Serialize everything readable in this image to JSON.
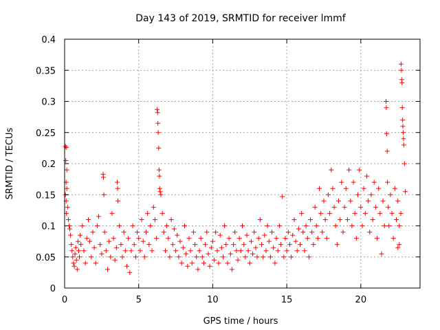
{
  "chart_data": {
    "type": "scatter",
    "title": "Day 143 of 2019, SRMTID for receiver lmmf",
    "xlabel": "GPS time / hours",
    "ylabel": "SRMTID / TECUs",
    "xlim": [
      0,
      24
    ],
    "ylim": [
      0,
      0.4
    ],
    "xticks": [
      0,
      5,
      10,
      15,
      20
    ],
    "yticks": [
      0,
      0.05,
      0.1,
      0.15,
      0.2,
      0.25,
      0.3,
      0.35,
      0.4
    ],
    "xtick_labels": [
      "0",
      "5",
      "10",
      "15",
      "20"
    ],
    "ytick_labels": [
      "0",
      "0.05",
      "0.1",
      "0.15",
      "0.2",
      "0.25",
      "0.3",
      "0.35",
      "0.4"
    ],
    "grid": true,
    "marker": "+",
    "color": "#ff0000",
    "series": [
      {
        "name": "lmmf",
        "points": [
          [
            0.05,
            0.228
          ],
          [
            0.1,
            0.226
          ],
          [
            0.08,
            0.205
          ],
          [
            0.15,
            0.19
          ],
          [
            0.1,
            0.17
          ],
          [
            0.15,
            0.16
          ],
          [
            0.05,
            0.15
          ],
          [
            0.1,
            0.14
          ],
          [
            0.2,
            0.13
          ],
          [
            0.12,
            0.12
          ],
          [
            0.25,
            0.11
          ],
          [
            0.3,
            0.1
          ],
          [
            0.35,
            0.095
          ],
          [
            0.4,
            0.085
          ],
          [
            0.45,
            0.07
          ],
          [
            0.5,
            0.06
          ],
          [
            0.55,
            0.05
          ],
          [
            0.6,
            0.04
          ],
          [
            0.65,
            0.035
          ],
          [
            0.7,
            0.055
          ],
          [
            0.75,
            0.065
          ],
          [
            0.8,
            0.045
          ],
          [
            0.85,
            0.03
          ],
          [
            0.9,
            0.075
          ],
          [
            0.95,
            0.06
          ],
          [
            1.0,
            0.05
          ],
          [
            1.05,
            0.085
          ],
          [
            1.1,
            0.07
          ],
          [
            1.2,
            0.1
          ],
          [
            1.3,
            0.06
          ],
          [
            1.4,
            0.04
          ],
          [
            1.5,
            0.08
          ],
          [
            1.6,
            0.11
          ],
          [
            1.7,
            0.075
          ],
          [
            1.8,
            0.05
          ],
          [
            1.9,
            0.09
          ],
          [
            2.0,
            0.065
          ],
          [
            2.1,
            0.04
          ],
          [
            2.2,
            0.1
          ],
          [
            2.3,
            0.115
          ],
          [
            2.4,
            0.07
          ],
          [
            2.5,
            0.055
          ],
          [
            2.6,
            0.183
          ],
          [
            2.62,
            0.178
          ],
          [
            2.65,
            0.15
          ],
          [
            2.7,
            0.09
          ],
          [
            2.8,
            0.06
          ],
          [
            2.9,
            0.03
          ],
          [
            3.0,
            0.075
          ],
          [
            3.1,
            0.05
          ],
          [
            3.2,
            0.12
          ],
          [
            3.3,
            0.08
          ],
          [
            3.4,
            0.045
          ],
          [
            3.5,
            0.065
          ],
          [
            3.55,
            0.17
          ],
          [
            3.58,
            0.16
          ],
          [
            3.6,
            0.14
          ],
          [
            3.7,
            0.1
          ],
          [
            3.8,
            0.07
          ],
          [
            3.9,
            0.05
          ],
          [
            4.0,
            0.09
          ],
          [
            4.1,
            0.06
          ],
          [
            4.2,
            0.035
          ],
          [
            4.3,
            0.08
          ],
          [
            4.4,
            0.025
          ],
          [
            4.5,
            0.06
          ],
          [
            4.6,
            0.1
          ],
          [
            4.7,
            0.07
          ],
          [
            4.8,
            0.05
          ],
          [
            4.9,
            0.09
          ],
          [
            5.0,
            0.08
          ],
          [
            5.1,
            0.06
          ],
          [
            5.2,
            0.11
          ],
          [
            5.3,
            0.075
          ],
          [
            5.4,
            0.05
          ],
          [
            5.5,
            0.09
          ],
          [
            5.6,
            0.12
          ],
          [
            5.7,
            0.07
          ],
          [
            5.8,
            0.1
          ],
          [
            5.9,
            0.06
          ],
          [
            6.0,
            0.13
          ],
          [
            6.1,
            0.11
          ],
          [
            6.2,
            0.08
          ],
          [
            6.25,
            0.287
          ],
          [
            6.28,
            0.282
          ],
          [
            6.3,
            0.265
          ],
          [
            6.32,
            0.25
          ],
          [
            6.35,
            0.225
          ],
          [
            6.38,
            0.19
          ],
          [
            6.4,
            0.18
          ],
          [
            6.42,
            0.16
          ],
          [
            6.45,
            0.155
          ],
          [
            6.5,
            0.15
          ],
          [
            6.6,
            0.12
          ],
          [
            6.7,
            0.09
          ],
          [
            6.8,
            0.06
          ],
          [
            6.9,
            0.1
          ],
          [
            7.0,
            0.08
          ],
          [
            7.1,
            0.05
          ],
          [
            7.2,
            0.11
          ],
          [
            7.3,
            0.07
          ],
          [
            7.4,
            0.095
          ],
          [
            7.5,
            0.06
          ],
          [
            7.6,
            0.085
          ],
          [
            7.7,
            0.05
          ],
          [
            7.8,
            0.075
          ],
          [
            7.9,
            0.04
          ],
          [
            8.0,
            0.065
          ],
          [
            8.1,
            0.1
          ],
          [
            8.2,
            0.055
          ],
          [
            8.3,
            0.035
          ],
          [
            8.4,
            0.08
          ],
          [
            8.5,
            0.06
          ],
          [
            8.6,
            0.04
          ],
          [
            8.7,
            0.09
          ],
          [
            8.8,
            0.07
          ],
          [
            8.9,
            0.05
          ],
          [
            9.0,
            0.03
          ],
          [
            9.1,
            0.06
          ],
          [
            9.2,
            0.08
          ],
          [
            9.3,
            0.05
          ],
          [
            9.4,
            0.04
          ],
          [
            9.5,
            0.07
          ],
          [
            9.6,
            0.09
          ],
          [
            9.7,
            0.055
          ],
          [
            9.8,
            0.035
          ],
          [
            9.9,
            0.065
          ],
          [
            10.0,
            0.075
          ],
          [
            10.1,
            0.045
          ],
          [
            10.2,
            0.09
          ],
          [
            10.3,
            0.06
          ],
          [
            10.4,
            0.04
          ],
          [
            10.5,
            0.085
          ],
          [
            10.6,
            0.065
          ],
          [
            10.7,
            0.05
          ],
          [
            10.8,
            0.1
          ],
          [
            10.9,
            0.07
          ],
          [
            11.0,
            0.04
          ],
          [
            11.1,
            0.08
          ],
          [
            11.2,
            0.055
          ],
          [
            11.3,
            0.03
          ],
          [
            11.4,
            0.07
          ],
          [
            11.5,
            0.09
          ],
          [
            11.6,
            0.06
          ],
          [
            11.7,
            0.045
          ],
          [
            11.8,
            0.08
          ],
          [
            11.9,
            0.06
          ],
          [
            12.0,
            0.1
          ],
          [
            12.1,
            0.07
          ],
          [
            12.2,
            0.05
          ],
          [
            12.3,
            0.085
          ],
          [
            12.4,
            0.06
          ],
          [
            12.5,
            0.04
          ],
          [
            12.6,
            0.075
          ],
          [
            12.7,
            0.055
          ],
          [
            12.8,
            0.09
          ],
          [
            12.9,
            0.065
          ],
          [
            13.0,
            0.05
          ],
          [
            13.1,
            0.08
          ],
          [
            13.2,
            0.11
          ],
          [
            13.3,
            0.07
          ],
          [
            13.4,
            0.05
          ],
          [
            13.5,
            0.085
          ],
          [
            13.6,
            0.06
          ],
          [
            13.7,
            0.1
          ],
          [
            13.8,
            0.075
          ],
          [
            13.9,
            0.05
          ],
          [
            14.0,
            0.09
          ],
          [
            14.1,
            0.065
          ],
          [
            14.2,
            0.04
          ],
          [
            14.3,
            0.08
          ],
          [
            14.4,
            0.06
          ],
          [
            14.5,
            0.1
          ],
          [
            14.6,
            0.07
          ],
          [
            14.7,
            0.147
          ],
          [
            14.8,
            0.05
          ],
          [
            14.9,
            0.08
          ],
          [
            15.0,
            0.06
          ],
          [
            15.1,
            0.09
          ],
          [
            15.2,
            0.07
          ],
          [
            15.3,
            0.05
          ],
          [
            15.4,
            0.085
          ],
          [
            15.5,
            0.11
          ],
          [
            15.6,
            0.075
          ],
          [
            15.7,
            0.06
          ],
          [
            15.8,
            0.095
          ],
          [
            15.9,
            0.07
          ],
          [
            16.0,
            0.12
          ],
          [
            16.1,
            0.09
          ],
          [
            16.2,
            0.06
          ],
          [
            16.3,
            0.1
          ],
          [
            16.4,
            0.08
          ],
          [
            16.5,
            0.05
          ],
          [
            16.6,
            0.11
          ],
          [
            16.7,
            0.09
          ],
          [
            16.8,
            0.07
          ],
          [
            16.9,
            0.13
          ],
          [
            17.0,
            0.1
          ],
          [
            17.1,
            0.08
          ],
          [
            17.2,
            0.16
          ],
          [
            17.3,
            0.12
          ],
          [
            17.4,
            0.09
          ],
          [
            17.5,
            0.14
          ],
          [
            17.6,
            0.11
          ],
          [
            17.7,
            0.08
          ],
          [
            17.8,
            0.15
          ],
          [
            17.9,
            0.12
          ],
          [
            18.0,
            0.19
          ],
          [
            18.1,
            0.16
          ],
          [
            18.2,
            0.13
          ],
          [
            18.3,
            0.1
          ],
          [
            18.4,
            0.07
          ],
          [
            18.5,
            0.14
          ],
          [
            18.6,
            0.11
          ],
          [
            18.7,
            0.17
          ],
          [
            18.8,
            0.09
          ],
          [
            18.9,
            0.13
          ],
          [
            19.0,
            0.16
          ],
          [
            19.1,
            0.11
          ],
          [
            19.2,
            0.19
          ],
          [
            19.3,
            0.14
          ],
          [
            19.4,
            0.1
          ],
          [
            19.5,
            0.17
          ],
          [
            19.6,
            0.12
          ],
          [
            19.7,
            0.08
          ],
          [
            19.8,
            0.15
          ],
          [
            19.9,
            0.19
          ],
          [
            20.0,
            0.13
          ],
          [
            20.1,
            0.1
          ],
          [
            20.2,
            0.16
          ],
          [
            20.3,
            0.12
          ],
          [
            20.4,
            0.18
          ],
          [
            20.5,
            0.14
          ],
          [
            20.6,
            0.09
          ],
          [
            20.7,
            0.15
          ],
          [
            20.8,
            0.11
          ],
          [
            20.9,
            0.17
          ],
          [
            21.0,
            0.13
          ],
          [
            21.1,
            0.08
          ],
          [
            21.2,
            0.16
          ],
          [
            21.3,
            0.12
          ],
          [
            21.4,
            0.055
          ],
          [
            21.5,
            0.14
          ],
          [
            21.6,
            0.1
          ],
          [
            21.7,
            0.3
          ],
          [
            21.72,
            0.29
          ],
          [
            21.75,
            0.248
          ],
          [
            21.78,
            0.22
          ],
          [
            21.8,
            0.17
          ],
          [
            21.85,
            0.13
          ],
          [
            21.9,
            0.1
          ],
          [
            22.0,
            0.15
          ],
          [
            22.1,
            0.12
          ],
          [
            22.2,
            0.08
          ],
          [
            22.3,
            0.16
          ],
          [
            22.4,
            0.11
          ],
          [
            22.5,
            0.14
          ],
          [
            22.6,
            0.07
          ],
          [
            22.7,
            0.12
          ],
          [
            22.72,
            0.36
          ],
          [
            22.74,
            0.35
          ],
          [
            22.76,
            0.335
          ],
          [
            22.78,
            0.33
          ],
          [
            22.8,
            0.29
          ],
          [
            22.82,
            0.27
          ],
          [
            22.84,
            0.26
          ],
          [
            22.86,
            0.25
          ],
          [
            22.88,
            0.24
          ],
          [
            22.9,
            0.23
          ],
          [
            22.95,
            0.2
          ],
          [
            23.0,
            0.155
          ],
          [
            22.6,
            0.1
          ],
          [
            22.5,
            0.065
          ]
        ]
      }
    ]
  }
}
